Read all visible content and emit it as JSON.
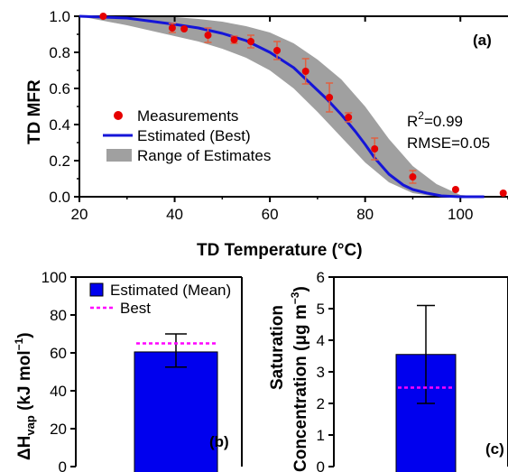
{
  "chart_data": [
    {
      "type": "line",
      "panel_label": "(a)",
      "xlabel": "TD Temperature (°C)",
      "ylabel": "TD MFR",
      "xlim": [
        20,
        110
      ],
      "ylim": [
        0,
        1
      ],
      "x_ticks": [
        "20",
        "40",
        "60",
        "80",
        "100"
      ],
      "y_ticks": [
        "0.0",
        "0.2",
        "0.4",
        "0.6",
        "0.8",
        "1.0"
      ],
      "legend": {
        "placement": "center-left",
        "entries": [
          "Measurements",
          "Estimated (Best)",
          "Range of Estimates"
        ]
      },
      "stats": {
        "r2_base": "R",
        "r2_sup": "2",
        "r2_value": "=0.99",
        "rmse": "RMSE=0.05"
      },
      "series": [
        {
          "name": "Measurements",
          "kind": "scatter-with-error",
          "x": [
            25,
            39.5,
            42,
            47,
            52.5,
            56,
            61.5,
            67.5,
            72.5,
            76.5,
            82,
            90,
            99,
            109
          ],
          "y": [
            1.0,
            0.935,
            0.93,
            0.895,
            0.87,
            0.86,
            0.81,
            0.695,
            0.55,
            0.44,
            0.265,
            0.11,
            0.04,
            0.02
          ],
          "err": [
            0,
            0.025,
            0,
            0.04,
            0.02,
            0.035,
            0.05,
            0.07,
            0.08,
            0.025,
            0.06,
            0.035,
            0,
            0
          ]
        },
        {
          "name": "Estimated (Best)",
          "kind": "line",
          "x": [
            20,
            30,
            40,
            45,
            50,
            55,
            60,
            65,
            70,
            72,
            75,
            78,
            80,
            82,
            85,
            88,
            90,
            93,
            96,
            100,
            105
          ],
          "y": [
            1.0,
            0.99,
            0.955,
            0.935,
            0.905,
            0.865,
            0.8,
            0.715,
            0.59,
            0.54,
            0.455,
            0.36,
            0.29,
            0.215,
            0.125,
            0.065,
            0.04,
            0.02,
            0.005,
            0.0,
            0.0
          ]
        },
        {
          "name": "Range of Estimates",
          "kind": "band",
          "x": [
            20,
            30,
            40,
            45,
            50,
            55,
            60,
            65,
            70,
            75,
            80,
            85,
            90,
            95,
            100,
            105
          ],
          "lower": [
            1.0,
            0.95,
            0.89,
            0.86,
            0.82,
            0.77,
            0.7,
            0.6,
            0.47,
            0.33,
            0.19,
            0.08,
            0.02,
            0.0,
            0.0,
            0.0
          ],
          "upper": [
            1.0,
            1.0,
            0.995,
            0.985,
            0.97,
            0.945,
            0.91,
            0.85,
            0.76,
            0.65,
            0.5,
            0.32,
            0.17,
            0.07,
            0.01,
            0.0
          ]
        }
      ],
      "colors": {
        "measure": "#e60000",
        "line": "#1515d8",
        "band": "#a0a0a0",
        "error": "#e06040"
      }
    },
    {
      "type": "bar",
      "panel_label": "(b)",
      "ylabel_main": "ΔH",
      "ylabel_sub": "vap",
      "ylabel_unit": " (kJ mol",
      "ylabel_exp": "−1",
      "ylabel_close": ")",
      "ylim": [
        0,
        100
      ],
      "y_ticks": [
        "0",
        "20",
        "40",
        "60",
        "80",
        "100"
      ],
      "legend": {
        "placement": "top-left",
        "entries": [
          "Estimated (Mean)",
          "Best"
        ]
      },
      "values": [
        60.5
      ],
      "error": [
        [
          52.5,
          70
        ]
      ],
      "best": 65,
      "colors": {
        "bar": "#0000ee",
        "best": "#ff00ff"
      }
    },
    {
      "type": "bar",
      "panel_label": "(c)",
      "ylabel_line1": "Saturation",
      "ylabel_line2": "Concentration (μg m",
      "ylabel_exp": "−3",
      "ylabel_close": ")",
      "ylim": [
        0,
        6
      ],
      "y_ticks": [
        "0",
        "1",
        "2",
        "3",
        "4",
        "5",
        "6"
      ],
      "values": [
        3.55
      ],
      "error": [
        [
          2.0,
          5.1
        ]
      ],
      "best": 2.5,
      "colors": {
        "bar": "#0000ee",
        "best": "#ff00ff"
      }
    }
  ]
}
